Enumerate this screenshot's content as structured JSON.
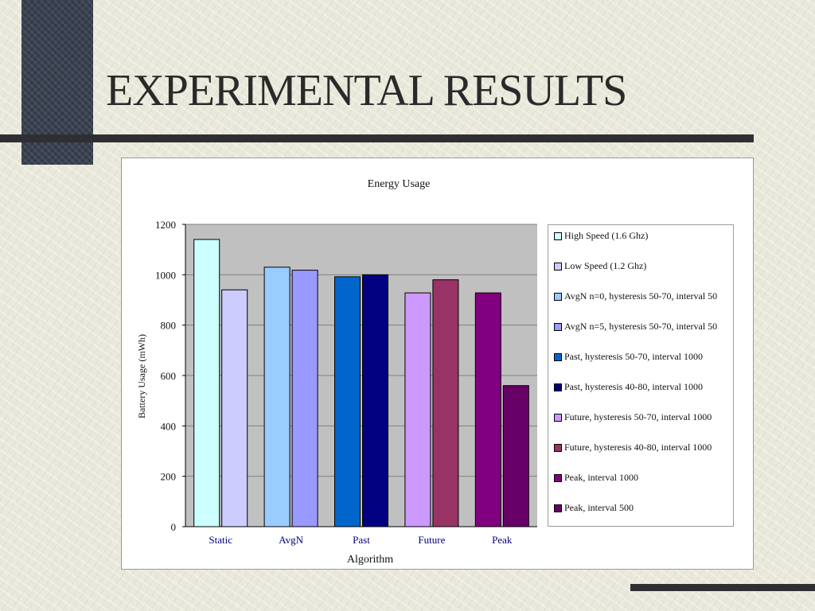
{
  "slide": {
    "title": "EXPERIMENTAL RESULTS"
  },
  "chart_data": {
    "type": "bar",
    "title": "Energy Usage",
    "xlabel": "Algorithm",
    "ylabel": "Battery Usage (mWh)",
    "ylim": [
      0,
      1200
    ],
    "yticks": [
      0,
      200,
      400,
      600,
      800,
      1000,
      1200
    ],
    "grid": true,
    "legend_position": "right",
    "groups": [
      {
        "name": "Static",
        "series": [
          "High Speed (1.6 Ghz)",
          "Low Speed (1.2 Ghz)"
        ],
        "values": [
          1140,
          940
        ]
      },
      {
        "name": "AvgN",
        "series": [
          "AvgN n=0, hysteresis 50-70, interval 50",
          "AvgN n=5, hysteresis 50-70, interval 50"
        ],
        "values": [
          1030,
          1018
        ]
      },
      {
        "name": "Past",
        "series": [
          "Past, hysteresis 50-70, interval 1000",
          "Past, hysteresis 40-80, interval 1000"
        ],
        "values": [
          992,
          1000
        ]
      },
      {
        "name": "Future",
        "series": [
          "Future, hysteresis 50-70, interval 1000",
          "Future, hysteresis 40-80, interval 1000"
        ],
        "values": [
          928,
          980
        ]
      },
      {
        "name": "Peak",
        "series": [
          "Peak, interval 1000",
          "Peak, interval 500"
        ],
        "values": [
          928,
          560
        ]
      }
    ],
    "series": [
      {
        "name": "High Speed (1.6 Ghz)",
        "color": "#ccffff"
      },
      {
        "name": "Low Speed (1.2 Ghz)",
        "color": "#ccccff"
      },
      {
        "name": "AvgN n=0, hysteresis 50-70, interval 50",
        "color": "#99ccff"
      },
      {
        "name": "AvgN n=5, hysteresis 50-70, interval 50",
        "color": "#9999ff"
      },
      {
        "name": "Past, hysteresis 50-70, interval 1000",
        "color": "#0066cc"
      },
      {
        "name": "Past, hysteresis 40-80, interval 1000",
        "color": "#000080"
      },
      {
        "name": "Future, hysteresis 50-70, interval 1000",
        "color": "#cc99ff"
      },
      {
        "name": "Future, hysteresis 40-80, interval 1000",
        "color": "#993366"
      },
      {
        "name": "Peak, interval 1000",
        "color": "#800080"
      },
      {
        "name": "Peak, interval 500",
        "color": "#660066"
      }
    ],
    "colors": {
      "plot_background": "#c0c0c0",
      "gridline": "#808080",
      "category_label": "#000080"
    }
  }
}
